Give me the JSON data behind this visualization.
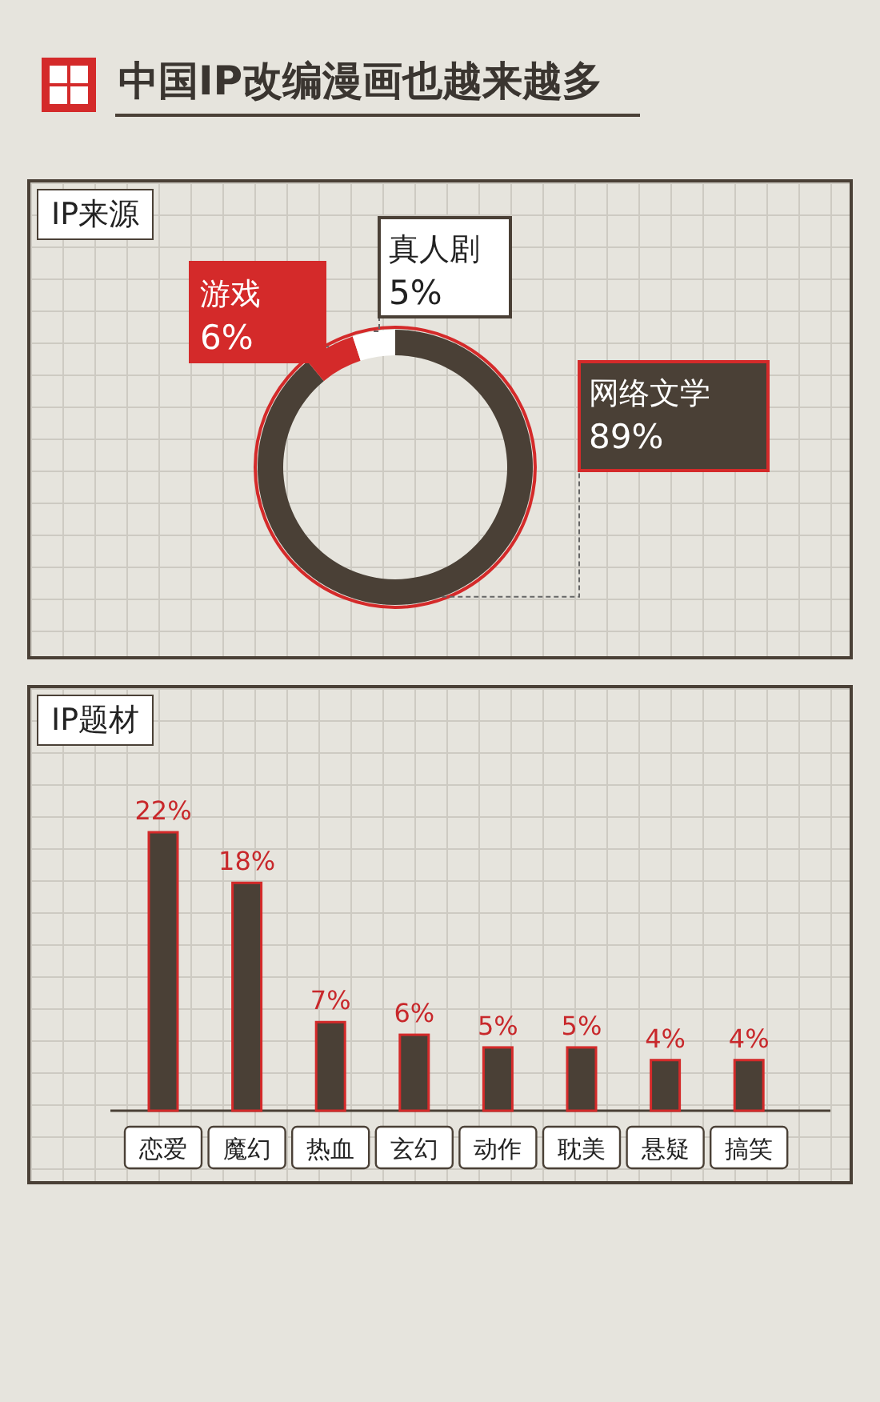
{
  "chart_data": [
    {
      "type": "donut",
      "title": "中国IP改编漫画也越来越多",
      "subtitle": "IP来源",
      "categories": [
        "网络文学",
        "游戏",
        "真人剧"
      ],
      "values": [
        89,
        6,
        5
      ],
      "value_labels": [
        "89%",
        "6%",
        "5%"
      ],
      "colors": [
        "#4a4036",
        "#d42a2a",
        "#ffffff"
      ]
    },
    {
      "type": "bar",
      "title": "IP题材",
      "categories": [
        "恋爱",
        "魔幻",
        "热血",
        "玄幻",
        "动作",
        "耽美",
        "悬疑",
        "搞笑"
      ],
      "values": [
        22,
        18,
        7,
        6,
        5,
        5,
        4,
        4
      ],
      "value_labels": [
        "22%",
        "18%",
        "7%",
        "6%",
        "5%",
        "5%",
        "4%",
        "4%"
      ],
      "color": "#4a4036"
    }
  ]
}
